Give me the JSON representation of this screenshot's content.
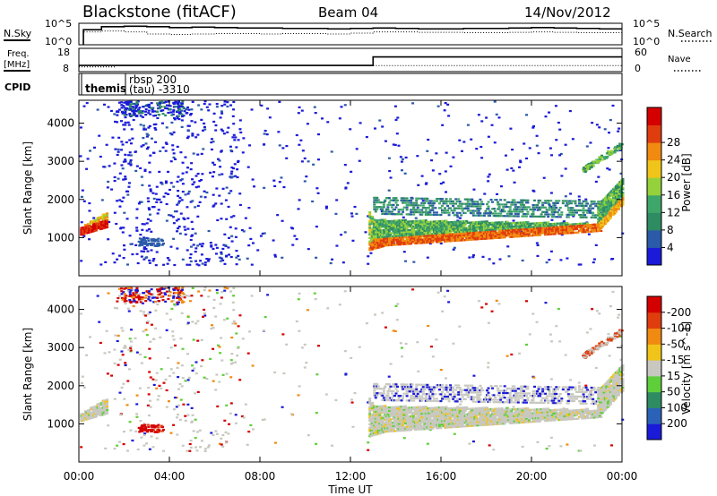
{
  "header": {
    "station": "Blackstone (fitACF)",
    "beam": "Beam 04",
    "date": "14/Nov/2012"
  },
  "noise_panel": {
    "left_label": "N.Sky",
    "right_label": "N.Search",
    "ytick_top": "10^5",
    "ytick_bottom": "10^0",
    "sky_noise_log10": [
      3.5,
      4.2,
      4.3,
      4.2,
      4.0,
      4.1,
      4.0,
      3.9,
      3.9,
      3.8,
      3.8,
      3.7,
      3.8,
      3.9,
      3.8,
      3.7,
      3.7,
      3.8,
      3.8,
      3.9,
      4.0,
      3.9,
      3.8,
      3.7
    ],
    "search_noise_log10": [
      3.0,
      3.2,
      3.0,
      2.5,
      2.4,
      2.5,
      2.6,
      2.6,
      2.5,
      2.6,
      2.6,
      2.5,
      2.7,
      3.0,
      3.0,
      2.9,
      2.9,
      2.8,
      2.8,
      2.9,
      3.0,
      2.9,
      2.8,
      2.8
    ]
  },
  "freq_panel": {
    "left_label_1": "Freq.",
    "left_label_2": "[MHz]",
    "right_label": "Nave",
    "ytick_left_top": "18",
    "ytick_left_bottom": "8",
    "ytick_right_top": "60",
    "ytick_right_bottom": "0",
    "nave_segments": [
      {
        "start_h": 0.0,
        "end_h": 13.0,
        "value": 16
      },
      {
        "start_h": 13.0,
        "end_h": 24.0,
        "value": 38
      }
    ],
    "freq_segments": [
      {
        "start_h": 0.0,
        "end_h": 1.6,
        "value": 10
      },
      {
        "start_h": 1.6,
        "end_h": 24.0,
        "value": 10.6
      }
    ]
  },
  "cpid_panel": {
    "label": "CPID",
    "entries": [
      {
        "start_h": 0.0,
        "text": "themis"
      },
      {
        "start_h": 1.85,
        "text": "rbsp 200",
        "text2": "(tau) -3310"
      }
    ]
  },
  "chart_data": [
    {
      "type": "heatmap",
      "title": "Power",
      "xlabel": "Time UT",
      "ylabel": "Slant Range [km]",
      "xlim": [
        0,
        24
      ],
      "ylim": [
        0,
        4600
      ],
      "xticks": [
        "00:00",
        "04:00",
        "08:00",
        "12:00",
        "16:00",
        "20:00",
        "00:00"
      ],
      "yticks": [
        "1000",
        "2000",
        "3000",
        "4000"
      ],
      "colorbar": {
        "label": "Power [dB]",
        "ticks": [
          "4",
          "8",
          "12",
          "16",
          "20",
          "24",
          "28"
        ],
        "colors": [
          "#1a1ad9",
          "#2a5aa8",
          "#2e8b62",
          "#3fa66a",
          "#95d13a",
          "#f0c419",
          "#f08a10",
          "#e03d0e",
          "#d40000"
        ]
      },
      "echo_bands": [
        {
          "t0": 0.05,
          "t1": 1.2,
          "r_low_start": 1100,
          "r_low_end": 1300,
          "r_high_start": 1300,
          "r_high_end": 1700,
          "level": 6,
          "core_level": 8
        },
        {
          "t0": 12.8,
          "t1": 13.4,
          "r_low_start": 700,
          "r_low_end": 800,
          "r_high_start": 1700,
          "r_high_end": 1100,
          "level": 5,
          "core_level": 7
        },
        {
          "t0": 13.0,
          "t1": 23.0,
          "r_low_start": 800,
          "r_low_end": 1200,
          "r_high_start": 1500,
          "r_high_end": 1400,
          "level": 4,
          "core_level": 7
        },
        {
          "t0": 22.9,
          "t1": 24.0,
          "r_low_start": 1200,
          "r_low_end": 1900,
          "r_high_start": 1900,
          "r_high_end": 2600,
          "level": 4,
          "core_level": 6
        }
      ]
    },
    {
      "type": "heatmap",
      "title": "Velocity",
      "xlabel": "Time UT",
      "ylabel": "Slant Range [km]",
      "xlim": [
        0,
        24
      ],
      "ylim": [
        0,
        4600
      ],
      "xticks": [
        "00:00",
        "04:00",
        "08:00",
        "12:00",
        "16:00",
        "20:00",
        "00:00"
      ],
      "yticks": [
        "1000",
        "2000",
        "3000",
        "4000"
      ],
      "colorbar": {
        "label": "Velocity [m s^-1]",
        "ticks": [
          "200",
          "100",
          "50",
          "15",
          "-15",
          "-50",
          "-100",
          "-200"
        ],
        "colors": [
          "#1a1ad9",
          "#2a62b8",
          "#2e8b62",
          "#5ecf3a",
          "#c8c8c0",
          "#f0c419",
          "#f08a10",
          "#e03d0e",
          "#d40000"
        ]
      }
    }
  ]
}
